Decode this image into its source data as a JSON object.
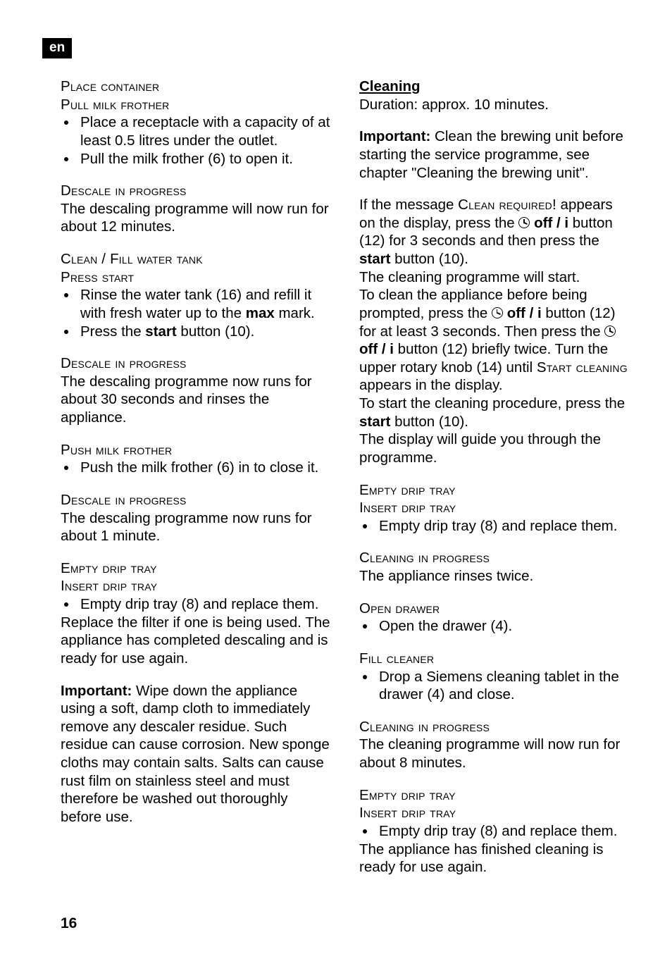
{
  "lang_label": "en",
  "page_number": "16",
  "left": {
    "sec1_l1": "Place container",
    "sec1_l2": "Pull milk frother",
    "sec1_b1": "Place a receptacle with a capacity of at least 0.5 litres under the outlet.",
    "sec1_b2": "Pull the milk frother (6) to open it.",
    "sec2_l1": "Descale in progress",
    "sec2_p1": "The descaling programme will now run for about 12 minutes.",
    "sec3_l1": "Clean / Fill water tank",
    "sec3_l2": "Press start",
    "sec3_b1a": "Rinse the water tank (16) and refill it with fresh water up to the ",
    "sec3_b1b": "max",
    "sec3_b1c": " mark.",
    "sec3_b2a": "Press the ",
    "sec3_b2b": "start",
    "sec3_b2c": " button (10).",
    "sec4_l1": "Descale in progress",
    "sec4_p1": "The descaling programme now runs for about 30 seconds and rinses the appliance.",
    "sec5_l1": "Push milk frother",
    "sec5_b1": "Push the milk frother (6) in to close it.",
    "sec6_l1": "Descale in progress",
    "sec6_p1": "The descaling programme now runs for about 1 minute.",
    "sec7_l1": "Empty drip tray",
    "sec7_l2": "Insert drip tray",
    "sec7_b1": "Empty drip tray (8) and replace them.",
    "sec7_p1": "Replace the filter if one is being used. The appliance has completed descaling and is ready for use again.",
    "sec8_lead": "Important:",
    "sec8_p1": " Wipe down the appliance using a soft, damp cloth to immediately remove any descaler residue. Such residue can cause corrosion. New sponge cloths may contain salts. Salts can cause rust film on stainless steel and must therefore be washed out thoroughly before use."
  },
  "right": {
    "hdr": "Cleaning",
    "dur": "Duration: approx. 10 minutes.",
    "imp_lead": "Important:",
    "imp_p": " Clean the brewing unit before starting the service programme, see chapter \"Cleaning the brewing unit\".",
    "p1a": "If the message ",
    "p1b": "Clean required!",
    "p1c": " appears on the display, press the ",
    "p1d": " off / i",
    "p1e": " button (12) for 3 seconds and then press the ",
    "p1f": "start",
    "p1g": " button (10).",
    "p2": "The cleaning programme will start.",
    "p3a": "To clean the appliance before being prompted, press the ",
    "p3b": " off / i",
    "p3c": " button (12) for at least 3 seconds. Then press the ",
    "p3d": " off / i",
    "p3e": " button (12) briefly twice. Turn the upper rotary knob (14) until ",
    "p3f": "Start cleaning",
    "p3g": " appears in the display.",
    "p4a": "To start the cleaning procedure, press the ",
    "p4b": "start",
    "p4c": " button (10).",
    "p5": "The display will guide you through the programme.",
    "rsec1_l1": "Empty drip tray",
    "rsec1_l2": "Insert drip tray",
    "rsec1_b1": "Empty drip tray (8) and replace them.",
    "rsec2_l1": "Cleaning in progress",
    "rsec2_p1": "The appliance rinses twice.",
    "rsec3_l1": "Open drawer",
    "rsec3_b1": "Open the drawer (4).",
    "rsec4_l1": "Fill cleaner",
    "rsec4_b1": "Drop a Siemens cleaning tablet in the drawer (4) and close.",
    "rsec5_l1": "Cleaning in progress",
    "rsec5_p1": "The cleaning programme will now run for about 8 minutes.",
    "rsec6_l1": "Empty drip tray",
    "rsec6_l2": "Insert drip tray",
    "rsec6_b1": "Empty drip tray (8) and replace them.",
    "rsec6_p1": "The appliance has finished cleaning is ready for use again."
  }
}
